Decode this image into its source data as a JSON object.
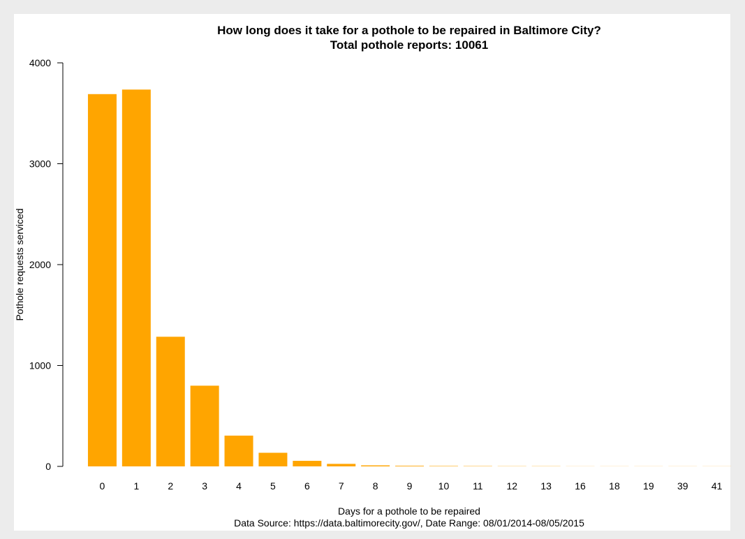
{
  "chart_data": {
    "type": "bar",
    "title": "How long does it take for a pothole to be repaired in Baltimore City?",
    "subtitle": "Total pothole reports: 10061",
    "xlabel": "Days for a pothole to be repaired",
    "ylabel": "Pothole requests serviced",
    "source_note": "Data Source: https://data.baltimorecity.gov/, Date Range: 08/01/2014-08/05/2015",
    "categories": [
      "0",
      "1",
      "2",
      "3",
      "4",
      "5",
      "6",
      "7",
      "8",
      "9",
      "10",
      "11",
      "12",
      "13",
      "16",
      "18",
      "19",
      "39",
      "41"
    ],
    "values": [
      3690,
      3735,
      1285,
      800,
      305,
      135,
      55,
      25,
      10,
      6,
      4,
      3,
      2,
      2,
      1,
      1,
      1,
      1,
      1
    ],
    "ylim": [
      0,
      4000
    ],
    "yticks": [
      0,
      1000,
      2000,
      3000,
      4000
    ],
    "bar_color": "#FFA500",
    "grid": false,
    "legend": "none"
  }
}
